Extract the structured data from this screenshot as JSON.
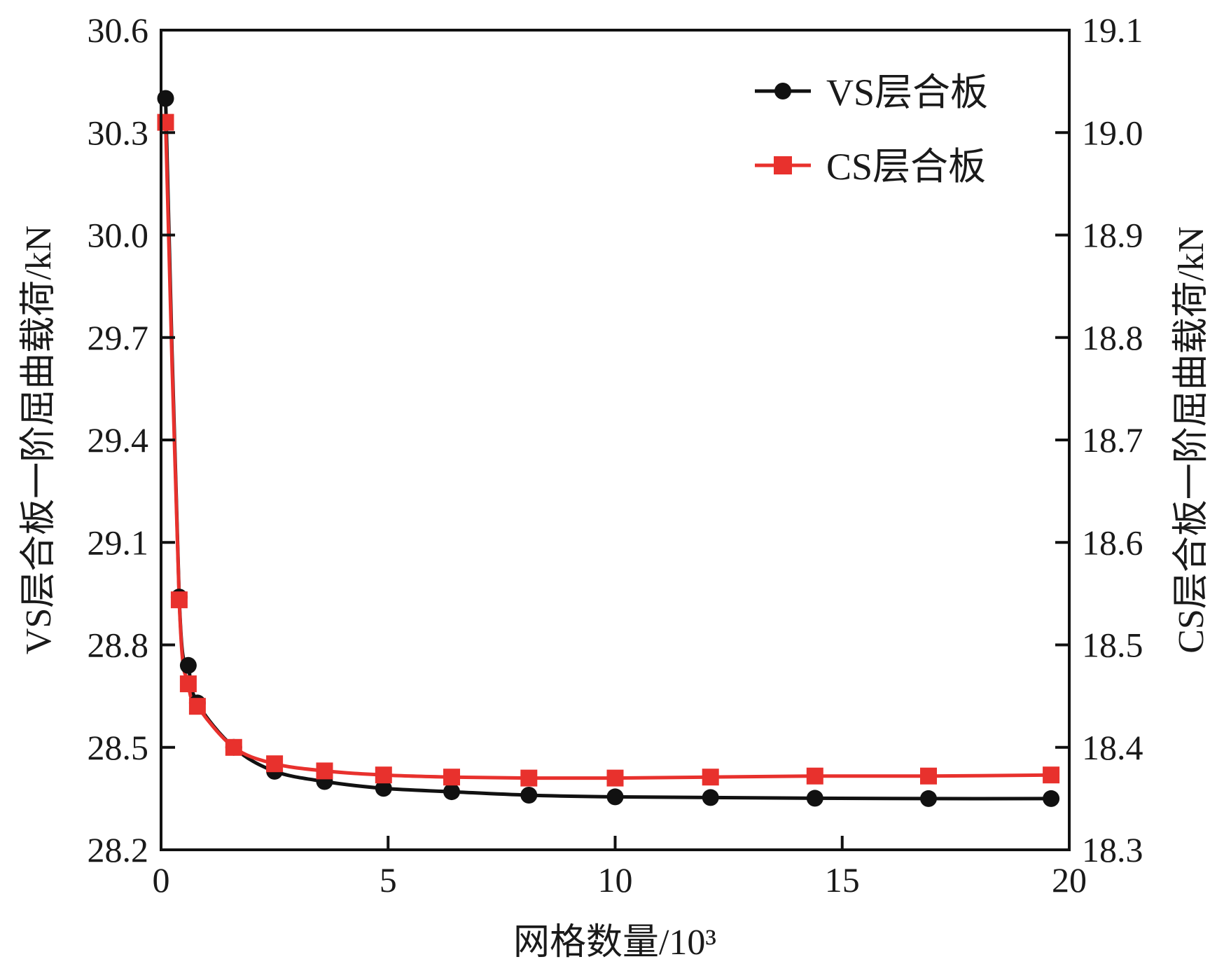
{
  "chart_data": {
    "type": "line",
    "xlabel": "网格数量/10³",
    "ylabel_left": "VS层合板一阶屈曲载荷/kN",
    "ylabel_right": "CS层合板一阶屈曲载荷/kN",
    "xlim": [
      0,
      20
    ],
    "ylim_left": [
      28.2,
      30.6
    ],
    "ylim_right": [
      18.3,
      19.1
    ],
    "x_ticks": [
      "0",
      "5",
      "10",
      "15",
      "20"
    ],
    "y_ticks_left": [
      "28.2",
      "28.5",
      "28.8",
      "29.1",
      "29.4",
      "29.7",
      "30.0",
      "30.3",
      "30.6"
    ],
    "y_ticks_right": [
      "18.3",
      "18.4",
      "18.5",
      "18.6",
      "18.7",
      "18.8",
      "18.9",
      "19.0",
      "19.1"
    ],
    "legend_position": "top-right",
    "grid": false,
    "series": [
      {
        "name": "VS层合板",
        "axis": "left",
        "color": "#111111",
        "marker": "circle",
        "x": [
          0.1,
          0.4,
          0.6,
          0.8,
          1.6,
          2.5,
          3.6,
          4.9,
          6.4,
          8.1,
          10.0,
          12.1,
          14.4,
          16.9,
          19.6
        ],
        "y": [
          30.4,
          28.94,
          28.74,
          28.63,
          28.5,
          28.43,
          28.4,
          28.38,
          28.37,
          28.36,
          28.355,
          28.353,
          28.351,
          28.35,
          28.35
        ]
      },
      {
        "name": "CS层合板",
        "axis": "right",
        "color": "#e8312d",
        "marker": "square",
        "x": [
          0.1,
          0.4,
          0.6,
          0.8,
          1.6,
          2.5,
          3.6,
          4.9,
          6.4,
          8.1,
          10.0,
          12.1,
          14.4,
          16.9,
          19.6
        ],
        "y": [
          19.01,
          18.544,
          18.462,
          18.44,
          18.4,
          18.384,
          18.377,
          18.373,
          18.371,
          18.37,
          18.37,
          18.371,
          18.372,
          18.372,
          18.373
        ]
      }
    ]
  }
}
